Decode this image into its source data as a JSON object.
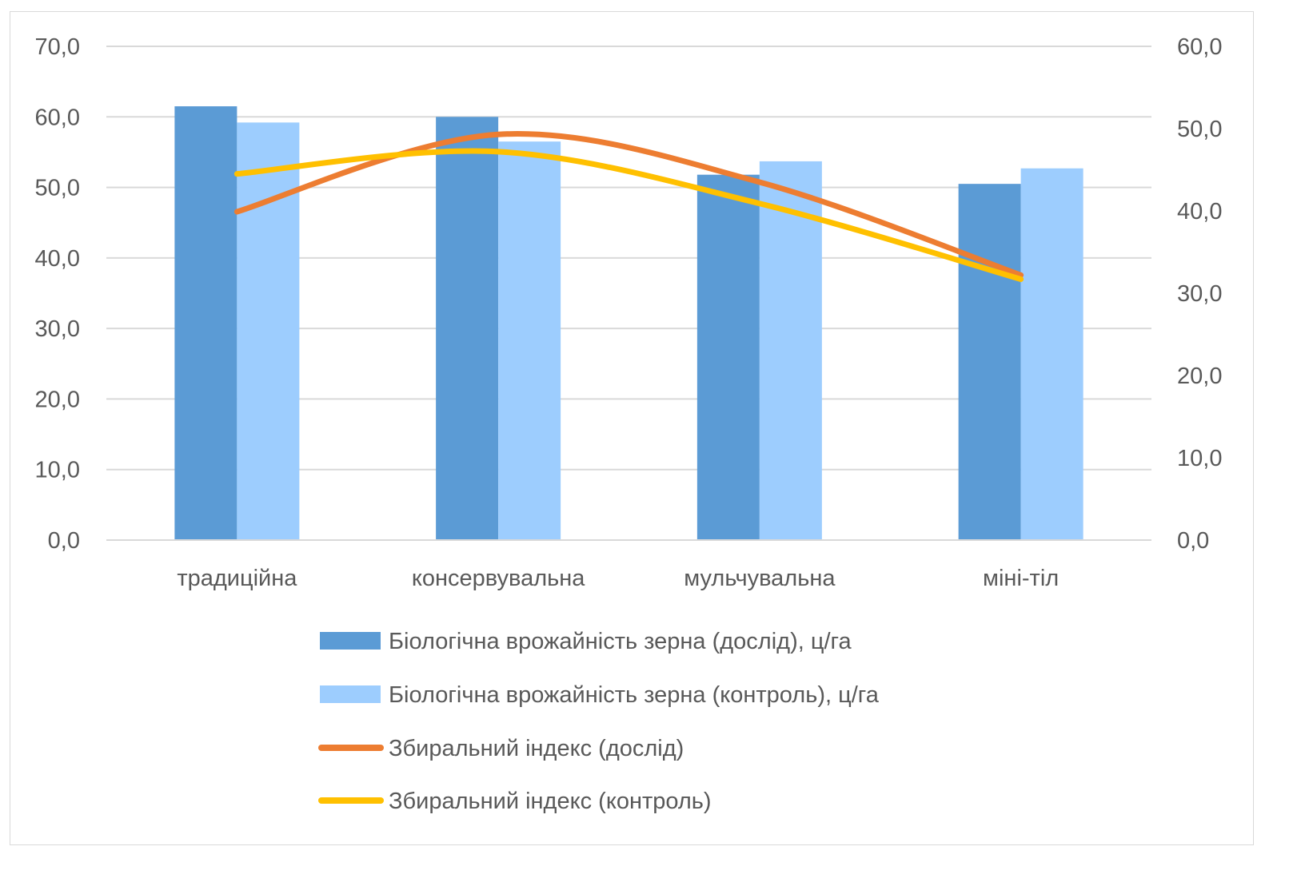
{
  "chart_data": {
    "type": "bar",
    "title": "",
    "categories": [
      "традиційна",
      "консервувальна",
      "мульчувальна",
      "міні-тіл"
    ],
    "series": [
      {
        "name": "Біологічна врожайність зерна (дослід), ц/га",
        "kind": "bar",
        "axis": "left",
        "color": "#5b9bd5",
        "values": [
          61.5,
          60.0,
          51.8,
          50.5
        ]
      },
      {
        "name": "Біологічна врожайність зерна (контроль), ц/га",
        "kind": "bar",
        "axis": "left",
        "color": "#9dcdfe",
        "values": [
          59.2,
          56.5,
          53.7,
          52.7
        ]
      },
      {
        "name": "Збиральний індекс (дослід)",
        "kind": "line",
        "axis": "right",
        "color": "#ed7d31",
        "values": [
          39.9,
          49.3,
          43.5,
          32.2
        ]
      },
      {
        "name": "Збиральний індекс (контроль)",
        "kind": "line",
        "axis": "right",
        "color": "#ffc000",
        "values": [
          44.5,
          47.2,
          40.9,
          31.7
        ]
      }
    ],
    "y_left": {
      "min": 0,
      "max": 70,
      "step": 10,
      "ticks": [
        "0,0",
        "10,0",
        "20,0",
        "30,0",
        "40,0",
        "50,0",
        "60,0",
        "70,0"
      ]
    },
    "y_right": {
      "min": 0,
      "max": 60,
      "step": 10,
      "ticks": [
        "0,0",
        "10,0",
        "20,0",
        "30,0",
        "40,0",
        "50,0",
        "60,0"
      ]
    },
    "grid": true,
    "legend": "bottom",
    "xlabel": "",
    "ylabel": ""
  }
}
